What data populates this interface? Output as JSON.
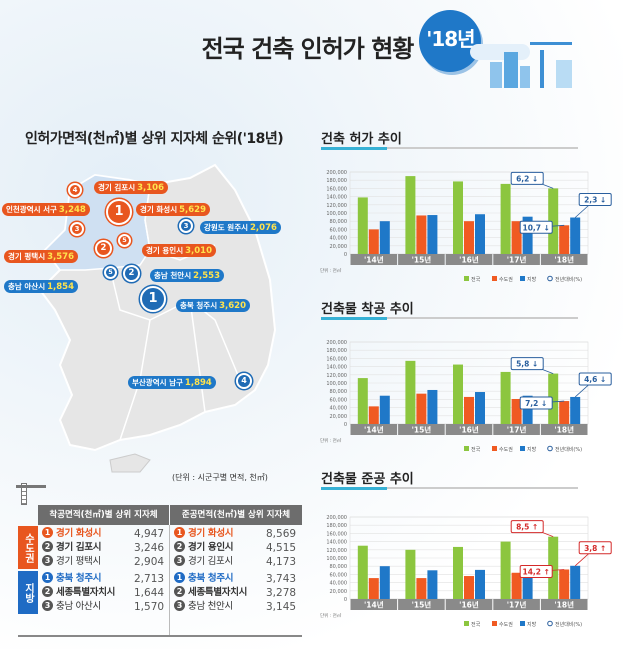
{
  "header": {
    "title": "전국 건축 인허가 현황",
    "year_badge": "'18년"
  },
  "map": {
    "title": "인허가면적(천㎡)별 상위 지자체 순위('18년)",
    "unit": "(단위 : 시군구별 면적, 천㎡)",
    "pins": [
      {
        "rank": "4",
        "region": "경기 김포시",
        "value": "3,106",
        "color": "orange"
      },
      {
        "rank": "1",
        "region": "경기 화성시",
        "value": "5,629",
        "color": "orange"
      },
      {
        "rank": "3",
        "region": "인천광역시 서구",
        "value": "3,248",
        "color": "orange"
      },
      {
        "rank": "2",
        "region": "경기 평택시",
        "value": "3,576",
        "color": "orange"
      },
      {
        "rank": "5",
        "region": "경기 용인시",
        "value": "3,010",
        "color": "orange"
      },
      {
        "rank": "3",
        "region": "강원도 원주시",
        "value": "2,076",
        "color": "blue"
      },
      {
        "rank": "5",
        "region": "충남 아산시",
        "value": "1,854",
        "color": "blue"
      },
      {
        "rank": "2",
        "region": "충남 천안시",
        "value": "2,553",
        "color": "blue"
      },
      {
        "rank": "1",
        "region": "충북 청주시",
        "value": "3,620",
        "color": "blue"
      },
      {
        "rank": "4",
        "region": "부산광역시 남구",
        "value": "1,894",
        "color": "blue"
      }
    ]
  },
  "table": {
    "headers": [
      "착공면적(천㎡)별 상위 지자체",
      "준공면적(천㎡)별 상위 지자체"
    ],
    "groups": [
      {
        "name": "수도권",
        "color": "#e8561f",
        "start": [
          {
            "rank": "1",
            "region": "경기 화성시",
            "value": "4,947"
          },
          {
            "rank": "2",
            "region": "경기 김포시",
            "value": "3,246"
          },
          {
            "rank": "3",
            "region": "경기 평택시",
            "value": "2,904"
          }
        ],
        "complete": [
          {
            "rank": "1",
            "region": "경기 화성시",
            "value": "8,569"
          },
          {
            "rank": "2",
            "region": "경기 용인시",
            "value": "4,515"
          },
          {
            "rank": "3",
            "region": "경기 김포시",
            "value": "4,173"
          }
        ]
      },
      {
        "name": "지방",
        "color": "#1f6bc4",
        "start": [
          {
            "rank": "1",
            "region": "충북 청주시",
            "value": "2,713"
          },
          {
            "rank": "2",
            "region": "세종특별자치시",
            "value": "1,644"
          },
          {
            "rank": "3",
            "region": "충남 아산시",
            "value": "1,570"
          }
        ],
        "complete": [
          {
            "rank": "1",
            "region": "충북 청주시",
            "value": "3,743"
          },
          {
            "rank": "2",
            "region": "세종특별자치시",
            "value": "3,278"
          },
          {
            "rank": "3",
            "region": "충남 천안시",
            "value": "3,145"
          }
        ]
      }
    ]
  },
  "colors": {
    "national": "#8cc63f",
    "capital": "#f05a22",
    "local": "#1f78c8",
    "down": "#2a5f9e",
    "up": "#d42a2a"
  },
  "chart_data": [
    {
      "type": "bar",
      "title": "건축 허가 추이",
      "categories": [
        "'14년",
        "'15년",
        "'16년",
        "'17년",
        "'18년"
      ],
      "ylim": [
        0,
        200000
      ],
      "yticks": [
        "200,000",
        "180,000",
        "160,000",
        "140,000",
        "120,000",
        "100,000",
        "80,000",
        "60,000",
        "40,000",
        "20,000",
        "0"
      ],
      "unit": "단위 : 천㎡",
      "legend_extra": "전년대비(%)",
      "grid": true,
      "series": [
        {
          "name": "전국",
          "values": [
            138000,
            190000,
            177000,
            171000,
            160000
          ]
        },
        {
          "name": "수도권",
          "values": [
            60000,
            94000,
            80000,
            80000,
            70000
          ]
        },
        {
          "name": "지방",
          "values": [
            80000,
            95000,
            97000,
            91000,
            89000
          ]
        }
      ],
      "callouts": [
        {
          "series": "전국",
          "text": "6,2 ↓",
          "dir": "down"
        },
        {
          "series": "지방",
          "text": "2,3 ↓",
          "dir": "down"
        },
        {
          "series": "수도권",
          "text": "10,7 ↓",
          "dir": "down"
        }
      ]
    },
    {
      "type": "bar",
      "title": "건축물 착공 추이",
      "categories": [
        "'14년",
        "'15년",
        "'16년",
        "'17년",
        "'18년"
      ],
      "ylim": [
        0,
        200000
      ],
      "yticks": [
        "200,000",
        "180,000",
        "160,000",
        "140,000",
        "120,000",
        "100,000",
        "80,000",
        "60,000",
        "40,000",
        "20,000",
        "0"
      ],
      "unit": "단위 : 천㎡",
      "legend_extra": "전년대비(%)",
      "grid": true,
      "series": [
        {
          "name": "전국",
          "values": [
            112000,
            154000,
            145000,
            127000,
            123000
          ]
        },
        {
          "name": "수도권",
          "values": [
            43000,
            74000,
            66000,
            61000,
            56000
          ]
        },
        {
          "name": "지방",
          "values": [
            69000,
            83000,
            78000,
            69000,
            66000
          ]
        }
      ],
      "callouts": [
        {
          "series": "전국",
          "text": "5,8 ↓",
          "dir": "down"
        },
        {
          "series": "지방",
          "text": "4,6 ↓",
          "dir": "down"
        },
        {
          "series": "수도권",
          "text": "7,2 ↓",
          "dir": "down"
        }
      ]
    },
    {
      "type": "bar",
      "title": "건축물 준공 추이",
      "categories": [
        "'14년",
        "'15년",
        "'16년",
        "'17년",
        "'18년"
      ],
      "ylim": [
        0,
        200000
      ],
      "yticks": [
        "200,000",
        "180,000",
        "160,000",
        "140,000",
        "120,000",
        "100,000",
        "80,000",
        "60,000",
        "40,000",
        "20,000",
        "0"
      ],
      "unit": "단위 : 천㎡",
      "legend_extra": "전년대비(%)",
      "grid": true,
      "series": [
        {
          "name": "전국",
          "values": [
            130000,
            120000,
            127000,
            140000,
            152000
          ]
        },
        {
          "name": "수도권",
          "values": [
            51000,
            51000,
            56000,
            64000,
            72000
          ]
        },
        {
          "name": "지방",
          "values": [
            80000,
            70000,
            71000,
            79000,
            81000
          ]
        }
      ],
      "callouts": [
        {
          "series": "전국",
          "text": "8,5 ↑",
          "dir": "up"
        },
        {
          "series": "지방",
          "text": "3,8 ↑",
          "dir": "up"
        },
        {
          "series": "수도권",
          "text": "14,2 ↑",
          "dir": "up"
        }
      ]
    }
  ]
}
